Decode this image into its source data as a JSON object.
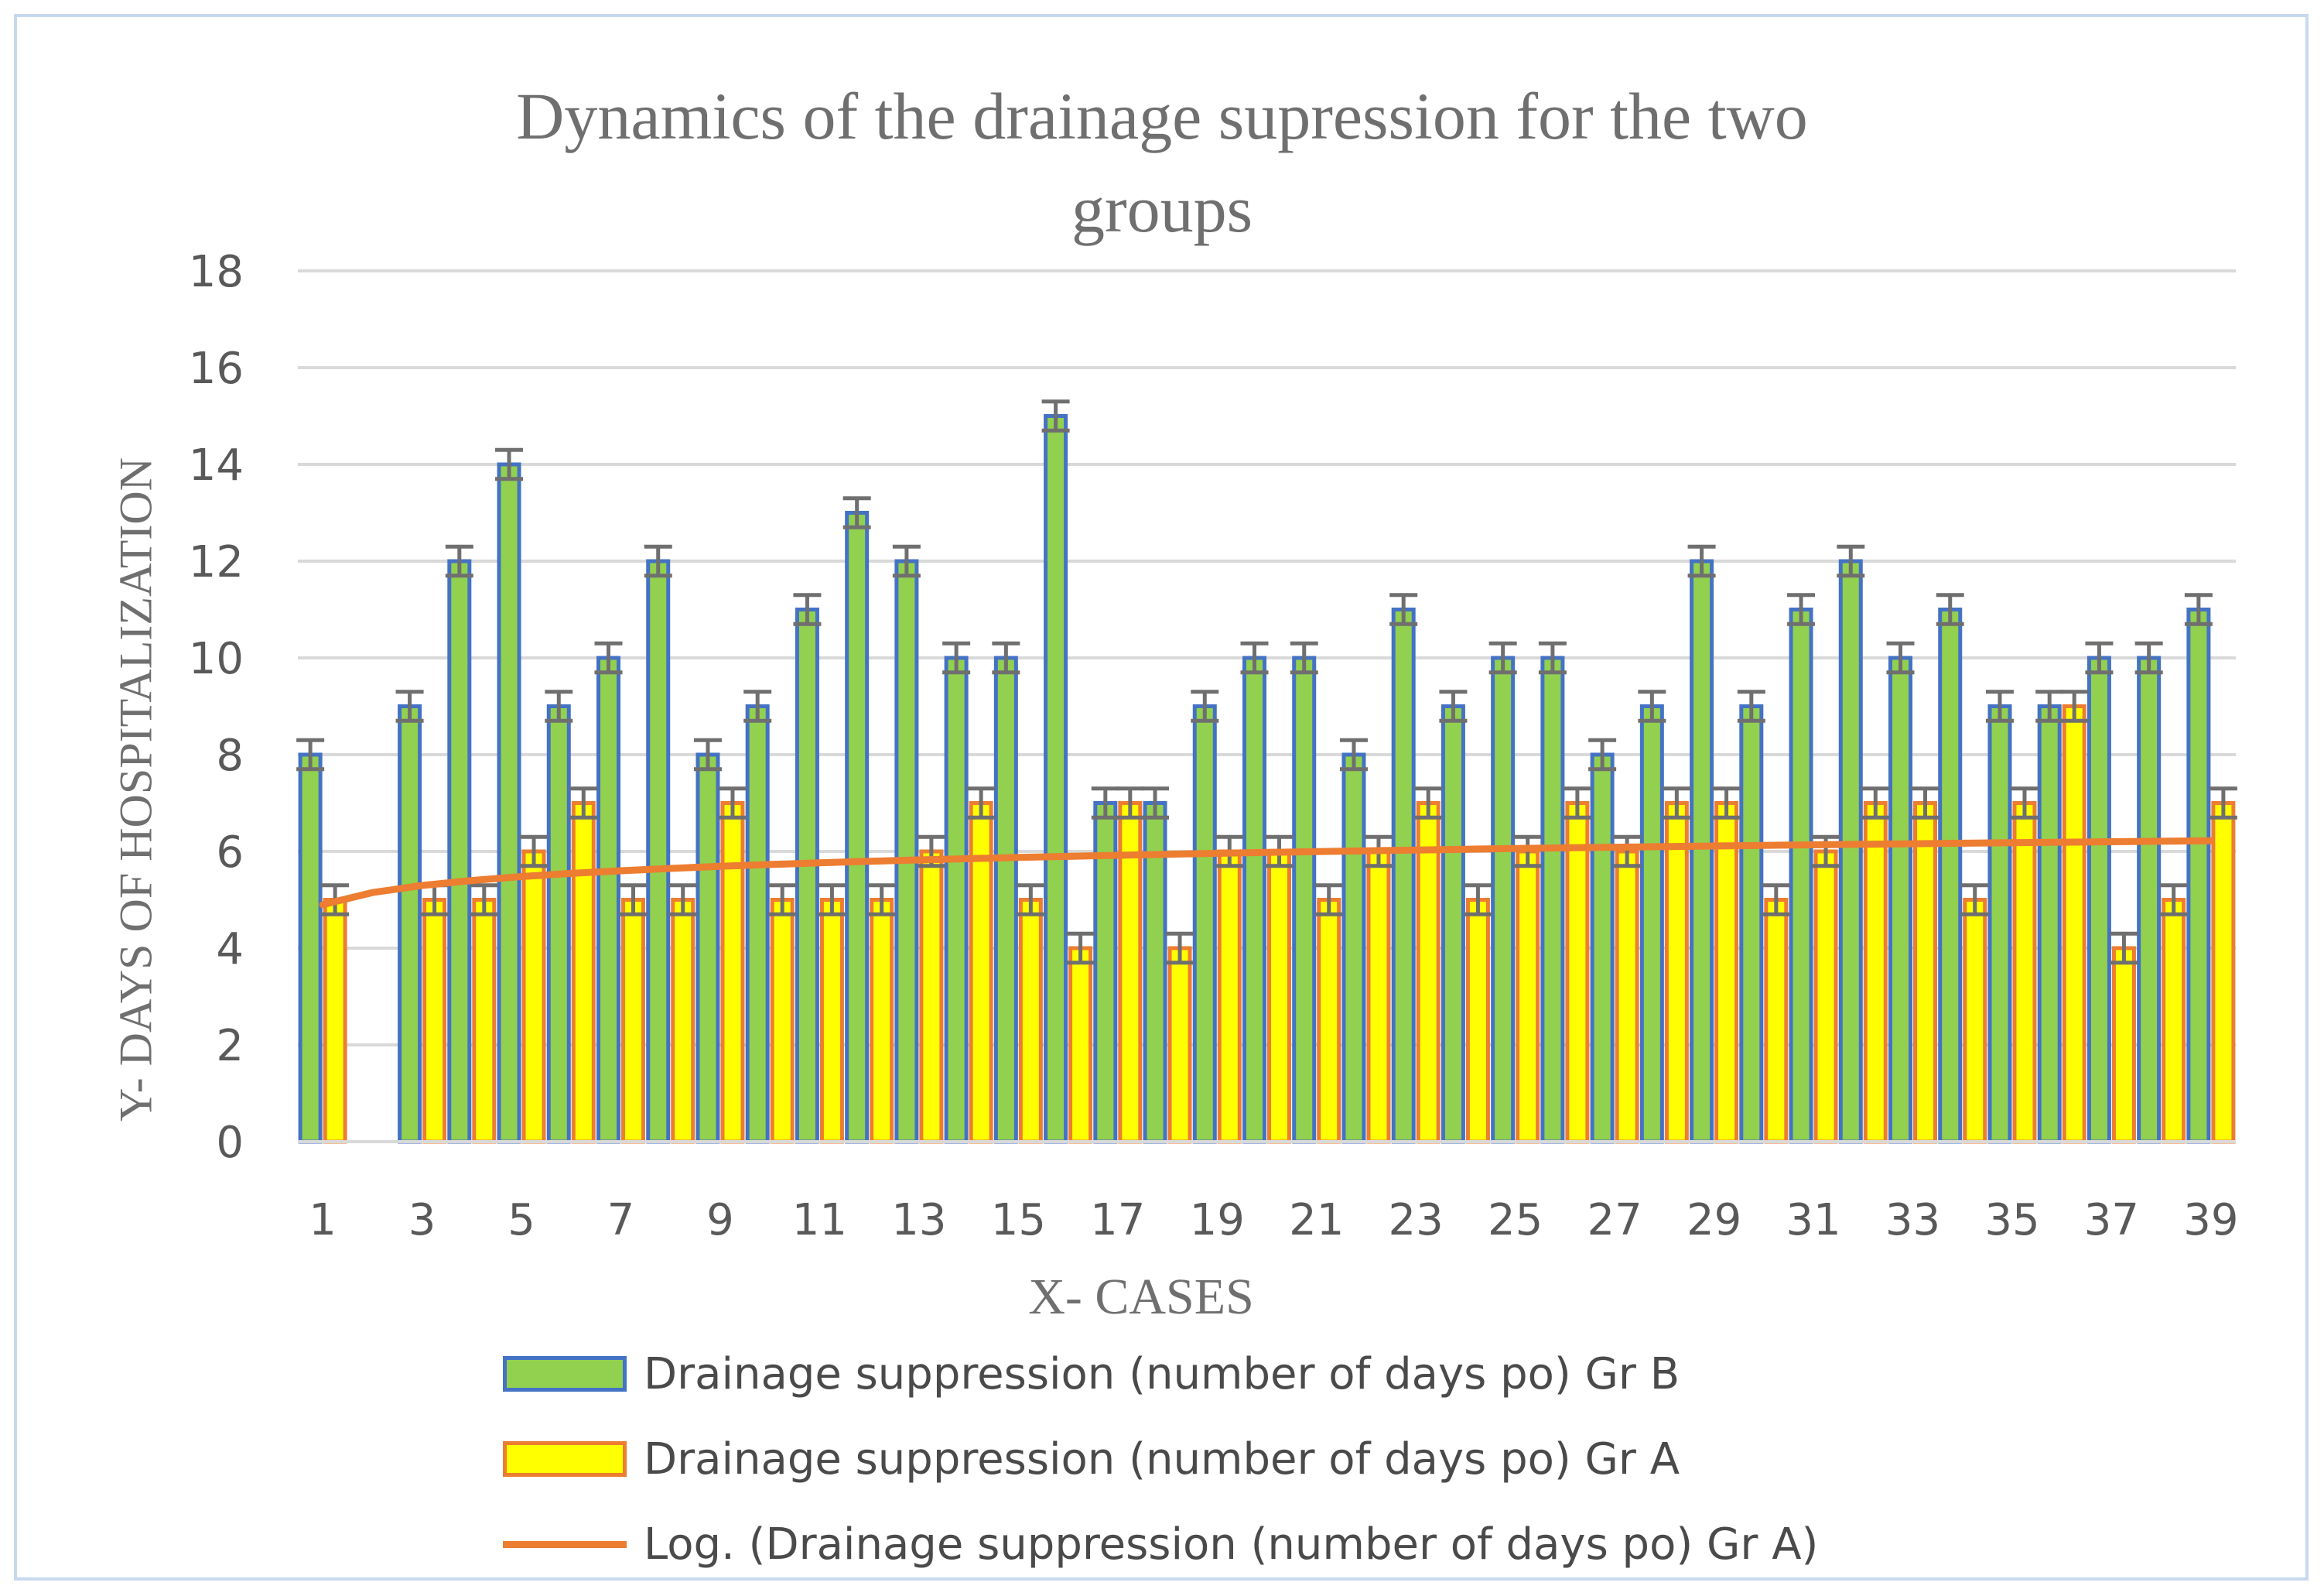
{
  "chart_data": {
    "type": "bar",
    "title_line1": "Dynamics of the drainage supression for the two",
    "title_line2": "groups",
    "xlabel": "X- CASES",
    "ylabel": "Y- DAYS OF HOSPITALIZATION",
    "ylim": [
      0,
      18
    ],
    "ytick_step": 2,
    "yticks": [
      "0",
      "2",
      "4",
      "6",
      "8",
      "10",
      "12",
      "14",
      "16",
      "18"
    ],
    "xtick_labels": [
      "1",
      "3",
      "5",
      "7",
      "9",
      "11",
      "13",
      "15",
      "17",
      "19",
      "21",
      "23",
      "25",
      "27",
      "29",
      "31",
      "33",
      "35",
      "37",
      "39"
    ],
    "categories": [
      1,
      2,
      3,
      4,
      5,
      6,
      7,
      8,
      9,
      10,
      11,
      12,
      13,
      14,
      15,
      16,
      17,
      18,
      19,
      20,
      21,
      22,
      23,
      24,
      25,
      26,
      27,
      28,
      29,
      30,
      31,
      32,
      33,
      34,
      35,
      36,
      37,
      38,
      39
    ],
    "error": 0.3,
    "grid": true,
    "series": [
      {
        "name": "Drainage suppression (number of days po) Gr B",
        "fill": "#92d050",
        "edge": "#4472c4",
        "values": [
          8,
          null,
          9,
          12,
          14,
          9,
          10,
          12,
          8,
          9,
          11,
          13,
          12,
          10,
          10,
          15,
          7,
          7,
          9,
          10,
          10,
          8,
          11,
          9,
          10,
          10,
          8,
          9,
          12,
          9,
          11,
          12,
          10,
          11,
          9,
          9,
          10,
          10,
          11
        ]
      },
      {
        "name": "Drainage suppression (number of days po) Gr A",
        "fill": "#ffff00",
        "edge": "#ed7d31",
        "values": [
          5,
          null,
          5,
          5,
          6,
          7,
          5,
          5,
          7,
          5,
          5,
          5,
          6,
          7,
          5,
          4,
          7,
          4,
          6,
          6,
          5,
          6,
          7,
          5,
          6,
          7,
          6,
          7,
          7,
          5,
          6,
          7,
          7,
          5,
          7,
          9,
          4,
          5,
          7
        ]
      }
    ],
    "trendline": {
      "name": "Log. (Drainage suppression (number of days po) Gr A)",
      "type": "logarithmic",
      "a": 4.9,
      "b": 0.36,
      "color": "#ed7d31"
    },
    "legend": "bottom"
  }
}
